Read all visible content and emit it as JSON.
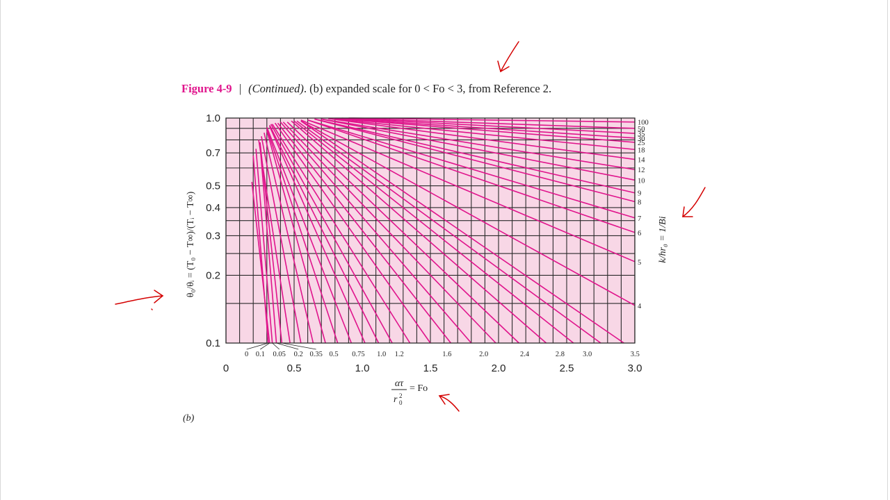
{
  "caption": {
    "figure": "Figure 4-9",
    "separator": "|",
    "continued": "(Continued)",
    "b_marker": "(b)",
    "rest": "expanded scale for 0 < Fo < 3, from Reference 2."
  },
  "sub_label": "(b)",
  "colors": {
    "curve": "#e0148c",
    "plot_bg": "#f8d7e6",
    "grid": "#2a2a2a",
    "annotation_arrow": "#d40000"
  },
  "chart_data": {
    "type": "line",
    "title": "",
    "xlabel_parts": {
      "numerator": "ατ",
      "denominator": "r",
      "denominator_sup": "2",
      "denominator_sub": "0",
      "suffix": "= Fo"
    },
    "ylabel": "θ₀/θᵢ = (T₀ − T∞)/(Tᵢ − T∞)",
    "right_label": "k/hr₀ = 1/Bi",
    "x_scale": "linear",
    "y_scale": "log",
    "xlim": [
      0,
      3.0
    ],
    "ylim": [
      0.1,
      1.0
    ],
    "grid": true,
    "x_ticks": [
      "0",
      "0.5",
      "1.0",
      "1.5",
      "2.0",
      "2.5",
      "3.0"
    ],
    "x_tick_values": [
      0,
      0.5,
      1.0,
      1.5,
      2.0,
      2.5,
      3.0
    ],
    "y_ticks": [
      "1.0",
      "0.7",
      "0.5",
      "0.4",
      "0.3",
      "0.2",
      "0.1"
    ],
    "y_tick_values": [
      1.0,
      0.7,
      0.5,
      0.4,
      0.3,
      0.2,
      0.1
    ],
    "bottom_curve_labels": [
      {
        "text": "0",
        "fo": 0.08
      },
      {
        "text": "0.1",
        "fo": 0.18
      },
      {
        "text": "0.05",
        "fo": 0.32
      },
      {
        "text": "0.2",
        "fo": 0.46
      },
      {
        "text": "0.35",
        "fo": 0.59
      },
      {
        "text": "0.5",
        "fo": 0.72
      },
      {
        "text": "0.75",
        "fo": 0.9
      },
      {
        "text": "1.0",
        "fo": 1.07
      },
      {
        "text": "1.2",
        "fo": 1.2
      },
      {
        "text": "1.6",
        "fo": 1.55
      },
      {
        "text": "2.0",
        "fo": 1.82
      },
      {
        "text": "2.4",
        "fo": 2.12
      },
      {
        "text": "2.8",
        "fo": 2.38
      },
      {
        "text": "3.0",
        "fo": 2.58
      },
      {
        "text": "3.5",
        "fo": 2.93
      }
    ],
    "right_curve_labels": [
      {
        "text": "100",
        "y": 0.96
      },
      {
        "text": "50",
        "y": 0.9
      },
      {
        "text": "35",
        "y": 0.855
      },
      {
        "text": "30",
        "y": 0.815
      },
      {
        "text": "25",
        "y": 0.78
      },
      {
        "text": "18",
        "y": 0.725
      },
      {
        "text": "14",
        "y": 0.655
      },
      {
        "text": "12",
        "y": 0.59
      },
      {
        "text": "10",
        "y": 0.53
      },
      {
        "text": "9",
        "y": 0.465
      },
      {
        "text": "8",
        "y": 0.425
      },
      {
        "text": "7",
        "y": 0.36
      },
      {
        "text": "6",
        "y": 0.31
      },
      {
        "text": "5",
        "y": 0.23
      },
      {
        "text": "4",
        "y": 0.147
      }
    ],
    "series": [
      {
        "bi_inv": 0,
        "x": [
          0.2,
          0.31
        ],
        "y": [
          0.68,
          0.1
        ]
      },
      {
        "bi_inv": 0.05,
        "x": [
          0.19,
          0.32
        ],
        "y": [
          0.52,
          0.1
        ]
      },
      {
        "bi_inv": 0.1,
        "x": [
          0.22,
          0.34
        ],
        "y": [
          0.73,
          0.1
        ]
      },
      {
        "bi_inv": 0.2,
        "x": [
          0.25,
          0.37
        ],
        "y": [
          0.76,
          0.1
        ]
      },
      {
        "bi_inv": 0.35,
        "x": [
          0.25,
          0.41
        ],
        "y": [
          0.78,
          0.1
        ]
      },
      {
        "bi_inv": 0.5,
        "x": [
          0.24,
          0.47
        ],
        "y": [
          0.8,
          0.1
        ]
      },
      {
        "bi_inv": 0.75,
        "x": [
          0.26,
          0.55
        ],
        "y": [
          0.83,
          0.1
        ]
      },
      {
        "bi_inv": 1.0,
        "x": [
          0.28,
          0.64
        ],
        "y": [
          0.86,
          0.1
        ]
      },
      {
        "bi_inv": 1.2,
        "x": [
          0.3,
          0.73
        ],
        "y": [
          0.88,
          0.1
        ]
      },
      {
        "bi_inv": 1.6,
        "x": [
          0.3,
          0.82
        ],
        "y": [
          0.9,
          0.1
        ]
      },
      {
        "bi_inv": 2.0,
        "x": [
          0.3,
          0.92
        ],
        "y": [
          0.91,
          0.1
        ]
      },
      {
        "bi_inv": 2.4,
        "x": [
          0.32,
          1.02
        ],
        "y": [
          0.92,
          0.1
        ]
      },
      {
        "bi_inv": 2.8,
        "x": [
          0.32,
          1.12
        ],
        "y": [
          0.93,
          0.1
        ]
      },
      {
        "bi_inv": 3.0,
        "x": [
          0.33,
          1.22
        ],
        "y": [
          0.94,
          0.1
        ]
      },
      {
        "bi_inv": 3.5,
        "x": [
          0.34,
          1.35
        ],
        "y": [
          0.94,
          0.1
        ]
      },
      {
        "bi_inv": 3.5,
        "x": [
          0.36,
          1.5
        ],
        "y": [
          0.95,
          0.1
        ]
      },
      {
        "bi_inv": 3.5,
        "x": [
          0.38,
          1.65
        ],
        "y": [
          0.95,
          0.1
        ]
      },
      {
        "bi_inv": 3.5,
        "x": [
          0.4,
          1.8
        ],
        "y": [
          0.96,
          0.1
        ]
      },
      {
        "bi_inv": 3.5,
        "x": [
          0.42,
          1.98
        ],
        "y": [
          0.96,
          0.1
        ]
      },
      {
        "bi_inv": 3.5,
        "x": [
          0.45,
          2.15
        ],
        "y": [
          0.96,
          0.1
        ]
      },
      {
        "bi_inv": 3.5,
        "x": [
          0.48,
          2.35
        ],
        "y": [
          0.97,
          0.1
        ]
      },
      {
        "bi_inv": 3.5,
        "x": [
          0.5,
          2.55
        ],
        "y": [
          0.97,
          0.1
        ]
      },
      {
        "bi_inv": 3.5,
        "x": [
          0.52,
          2.75
        ],
        "y": [
          0.97,
          0.1
        ]
      },
      {
        "bi_inv": 3.5,
        "x": [
          0.55,
          2.92
        ],
        "y": [
          0.97,
          0.1
        ]
      },
      {
        "bi_inv": 4,
        "x": [
          0.55,
          3.0
        ],
        "y": [
          0.97,
          0.147
        ]
      },
      {
        "bi_inv": 5,
        "x": [
          0.55,
          3.0
        ],
        "y": [
          0.98,
          0.23
        ]
      },
      {
        "bi_inv": 6,
        "x": [
          0.6,
          3.0
        ],
        "y": [
          0.98,
          0.31
        ]
      },
      {
        "bi_inv": 7,
        "x": [
          0.6,
          3.0
        ],
        "y": [
          0.98,
          0.36
        ]
      },
      {
        "bi_inv": 8,
        "x": [
          0.65,
          3.0
        ],
        "y": [
          0.99,
          0.425
        ]
      },
      {
        "bi_inv": 9,
        "x": [
          0.65,
          3.0
        ],
        "y": [
          0.99,
          0.465
        ]
      },
      {
        "bi_inv": 10,
        "x": [
          0.7,
          3.0
        ],
        "y": [
          0.99,
          0.53
        ]
      },
      {
        "bi_inv": 12,
        "x": [
          0.7,
          3.0
        ],
        "y": [
          0.99,
          0.59
        ]
      },
      {
        "bi_inv": 14,
        "x": [
          0.75,
          3.0
        ],
        "y": [
          0.995,
          0.655
        ]
      },
      {
        "bi_inv": 18,
        "x": [
          0.75,
          3.0
        ],
        "y": [
          0.995,
          0.725
        ]
      },
      {
        "bi_inv": 25,
        "x": [
          0.8,
          3.0
        ],
        "y": [
          0.995,
          0.78
        ]
      },
      {
        "bi_inv": 30,
        "x": [
          0.8,
          3.0
        ],
        "y": [
          0.998,
          0.815
        ]
      },
      {
        "bi_inv": 35,
        "x": [
          0.85,
          3.0
        ],
        "y": [
          0.998,
          0.855
        ]
      },
      {
        "bi_inv": 50,
        "x": [
          0.85,
          3.0
        ],
        "y": [
          0.999,
          0.9
        ]
      },
      {
        "bi_inv": 100,
        "x": [
          0.9,
          3.0
        ],
        "y": [
          1.0,
          0.96
        ]
      }
    ]
  }
}
